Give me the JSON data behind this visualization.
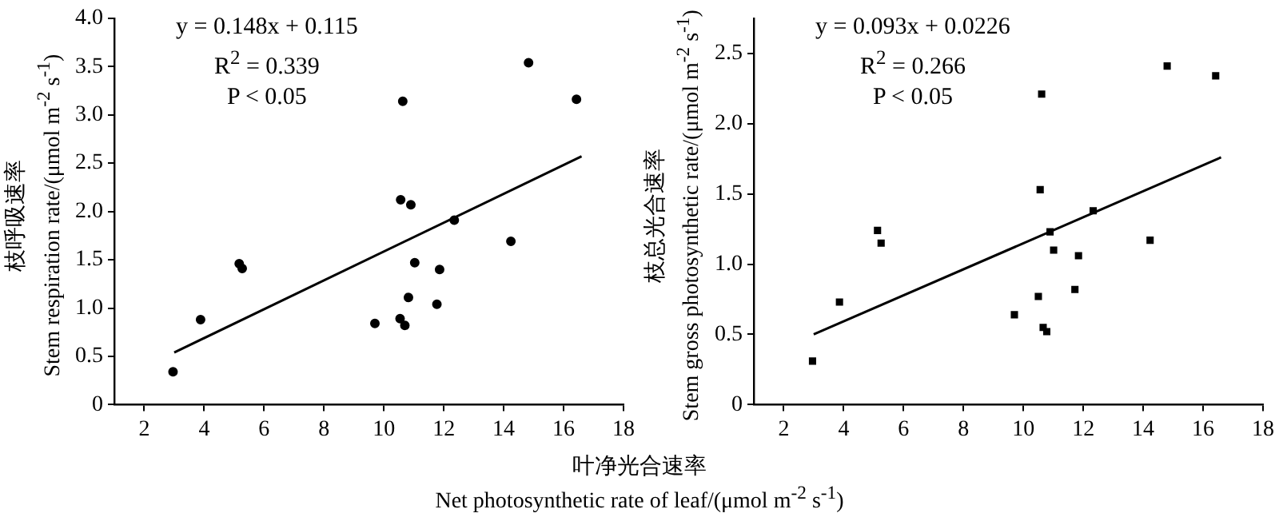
{
  "chart_data": [
    {
      "type": "scatter",
      "xlabel": "叶净光合速率\nNet photosynthetic rate of leaf/(μmol m$^{-2}$ s$^{-1}$)",
      "ylabel": "枝呼吸速率\nStem respiration rate/(μmol m$^{-2}$ s$^{-1}$)",
      "annotations": [
        "y = 0.148x + 0.115",
        "R$^{2}$ = 0.339",
        "P < 0.05"
      ],
      "xlim": [
        1,
        18
      ],
      "xticks": [
        2,
        4,
        6,
        8,
        10,
        12,
        14,
        16,
        18
      ],
      "ylim": [
        0,
        4
      ],
      "yticks": [
        0,
        0.5,
        {
          "value": 1,
          "label": "1.0"
        },
        1.5,
        {
          "value": 2,
          "label": "2.0"
        },
        2.5,
        {
          "value": 3,
          "label": "3.0"
        },
        3.5,
        {
          "value": 4,
          "label": "4.0"
        }
      ],
      "grid": false,
      "legend": false,
      "series": [
        {
          "color": "#000000",
          "marker": "circle",
          "x": [
            2.96,
            3.88,
            5.17,
            5.27,
            9.7,
            10.56,
            10.63,
            10.54,
            10.7,
            10.9,
            10.82,
            11.03,
            11.77,
            11.86,
            12.35,
            14.24,
            14.83,
            16.43
          ],
          "values": [
            0.34,
            0.88,
            1.46,
            1.41,
            0.84,
            2.12,
            3.14,
            0.89,
            0.82,
            2.07,
            1.11,
            1.47,
            1.04,
            1.4,
            1.91,
            1.69,
            3.54,
            3.16
          ]
        },
        {
          "type": "line",
          "color": "#000000",
          "x": [
            3,
            16.6
          ],
          "values": [
            0.54,
            2.57
          ]
        }
      ]
    },
    {
      "type": "scatter",
      "ylabel": "枝总光合速率\nStem gross photosynthetic rate/(μmol m$^{-2}$ s$^{-1}$)",
      "annotations": [
        "y = 0.093x + 0.0226",
        "R$^{2}$ = 0.266",
        "P < 0.05"
      ],
      "xlim": [
        1,
        18
      ],
      "xticks": [
        2,
        4,
        6,
        8,
        10,
        12,
        14,
        16,
        18
      ],
      "ylim": [
        0,
        2.75
      ],
      "yticks": [
        0,
        0.5,
        {
          "value": 1,
          "label": "1.0"
        },
        1.5,
        {
          "value": 2,
          "label": "2.0"
        },
        2.5
      ],
      "grid": false,
      "legend": false,
      "series": [
        {
          "color": "#000000",
          "marker": "square",
          "x": [
            2.96,
            3.86,
            5.13,
            5.25,
            9.7,
            10.5,
            10.56,
            10.61,
            10.66,
            10.78,
            10.89,
            11.01,
            11.72,
            11.84,
            12.33,
            14.23,
            14.8,
            16.42
          ],
          "values": [
            0.31,
            0.73,
            1.24,
            1.15,
            0.64,
            0.77,
            1.53,
            2.21,
            0.55,
            0.52,
            1.23,
            1.1,
            0.82,
            1.06,
            1.38,
            1.17,
            2.41,
            2.34
          ]
        },
        {
          "type": "line",
          "color": "#000000",
          "x": [
            3,
            16.6
          ],
          "values": [
            0.5,
            1.76
          ]
        }
      ]
    }
  ]
}
